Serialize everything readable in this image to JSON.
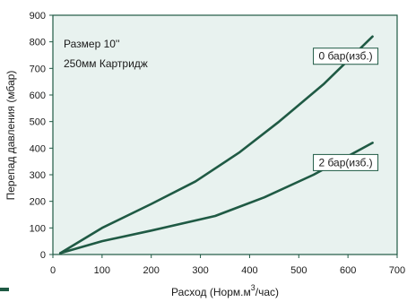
{
  "colors": {
    "plot_background": "#e8f2ef",
    "line": "#1f5a44",
    "frame": "#1f5a44",
    "text": "#1a1a1a"
  },
  "chart_data": {
    "type": "line",
    "title": "",
    "xlabel": "Расход (Норм.м",
    "xlabel_sup": "3",
    "xlabel_tail": "/час)",
    "ylabel": "Перепад давления (мбар)",
    "xlim": [
      0,
      700
    ],
    "ylim": [
      0,
      900
    ],
    "x_ticks": [
      0,
      100,
      200,
      300,
      400,
      500,
      600,
      700
    ],
    "y_ticks": [
      0,
      100,
      200,
      300,
      400,
      500,
      600,
      700,
      800,
      900
    ],
    "x_tick_labels": [
      "0",
      "100",
      "200",
      "300",
      "400",
      "500",
      "600",
      "700"
    ],
    "y_tick_labels": [
      "0",
      "100",
      "200",
      "300",
      "400",
      "500",
      "600",
      "700",
      "800",
      "900"
    ],
    "grid": false,
    "legend": "none",
    "notes": [
      "Размер 10''",
      "250мм Картридж"
    ],
    "series": [
      {
        "label": "0 бар(изб.)",
        "x": [
          15,
          100,
          200,
          290,
          380,
          460,
          550,
          650
        ],
        "y": [
          5,
          100,
          190,
          275,
          385,
          500,
          640,
          820
        ]
      },
      {
        "label": "2 бар(изб.)",
        "x": [
          15,
          100,
          200,
          330,
          430,
          530,
          650
        ],
        "y": [
          5,
          50,
          90,
          145,
          215,
          300,
          420
        ]
      }
    ]
  }
}
